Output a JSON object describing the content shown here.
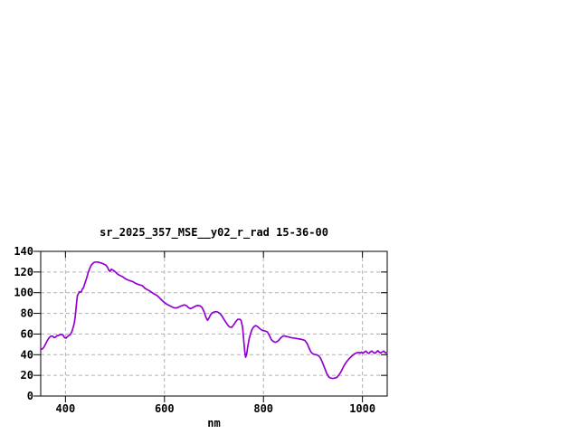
{
  "page": {
    "background": "#ffffff"
  },
  "chart_data": {
    "type": "line",
    "title": "sr_2025_357_MSE__y02_r_rad 15-36-00",
    "xlabel": "nm",
    "ylabel": "",
    "xlim": [
      350,
      1050
    ],
    "ylim": [
      0,
      140
    ],
    "xticks": [
      400,
      600,
      800,
      1000
    ],
    "yticks": [
      0,
      20,
      40,
      60,
      80,
      100,
      120,
      140
    ],
    "grid": true,
    "legend_position": "none",
    "line_color": "#9400d3",
    "grid_color": "#b0b0b0",
    "border_color": "#000000",
    "series": [
      {
        "name": "sr_2025_357_MSE__y02_r_rad",
        "x": [
          350,
          353,
          356,
          359,
          362,
          365,
          368,
          371,
          374,
          377,
          380,
          383,
          386,
          389,
          392,
          395,
          398,
          401,
          404,
          407,
          410,
          413,
          416,
          418,
          420,
          422,
          424,
          426,
          428,
          430,
          432,
          434,
          436,
          438,
          440,
          443,
          446,
          449,
          452,
          455,
          458,
          461,
          464,
          467,
          470,
          473,
          476,
          479,
          482,
          485,
          488,
          490,
          493,
          496,
          500,
          504,
          508,
          512,
          516,
          520,
          524,
          528,
          532,
          536,
          540,
          545,
          550,
          555,
          560,
          565,
          570,
          575,
          580,
          585,
          590,
          595,
          600,
          605,
          610,
          615,
          620,
          624,
          628,
          632,
          636,
          640,
          644,
          648,
          652,
          656,
          660,
          664,
          668,
          672,
          676,
          680,
          684,
          687,
          690,
          693,
          696,
          700,
          704,
          708,
          712,
          716,
          720,
          724,
          728,
          732,
          736,
          740,
          744,
          748,
          752,
          755,
          758,
          760,
          762,
          764,
          766,
          768,
          771,
          774,
          777,
          780,
          784,
          788,
          792,
          796,
          800,
          804,
          808,
          812,
          816,
          820,
          824,
          828,
          832,
          836,
          840,
          845,
          850,
          855,
          860,
          865,
          870,
          875,
          880,
          884,
          888,
          892,
          896,
          900,
          904,
          908,
          912,
          916,
          920,
          924,
          928,
          932,
          936,
          940,
          944,
          948,
          952,
          956,
          960,
          964,
          968,
          972,
          976,
          980,
          984,
          988,
          992,
          995,
          998,
          1001,
          1004,
          1007,
          1010,
          1013,
          1016,
          1019,
          1022,
          1025,
          1028,
          1031,
          1034,
          1037,
          1040,
          1043,
          1046,
          1049
        ],
        "y": [
          45,
          45.5,
          47,
          49.5,
          52.5,
          55,
          57,
          58,
          58,
          56.5,
          57,
          58.5,
          58.5,
          59.5,
          59.5,
          59,
          56.5,
          56,
          57.5,
          58.5,
          59.5,
          62.5,
          67,
          71,
          78,
          88,
          97,
          99,
          101,
          100.5,
          101,
          103.5,
          104.5,
          107,
          110,
          114.5,
          119.5,
          123.5,
          126.5,
          128.3,
          129.3,
          129.7,
          129.7,
          129.4,
          129,
          128.5,
          128,
          127.3,
          126.5,
          124.5,
          121.5,
          120.7,
          122.8,
          121.8,
          120.5,
          118.5,
          117.2,
          116.3,
          115.3,
          113.8,
          112.8,
          112,
          111.3,
          110.8,
          109.5,
          108.3,
          107.5,
          106.8,
          104.5,
          103,
          101.8,
          100,
          98.5,
          97.2,
          95,
          92.5,
          90.5,
          88.8,
          87.5,
          86.3,
          85.3,
          85.2,
          85.8,
          86.8,
          87.6,
          88.2,
          87.5,
          85.8,
          84.5,
          85.2,
          86.3,
          87.3,
          87.6,
          87.2,
          85.5,
          81.5,
          76,
          73.2,
          75.5,
          78.5,
          80.3,
          81.3,
          81.6,
          81.2,
          79.8,
          77.5,
          74.5,
          71.5,
          68.5,
          66.8,
          66.5,
          69,
          72,
          74.2,
          74.3,
          73,
          66,
          55,
          44,
          37.5,
          40,
          47,
          55,
          60.5,
          64.5,
          66.8,
          68.2,
          67.3,
          65.5,
          64,
          63.2,
          62.8,
          62,
          58.5,
          54.5,
          52.8,
          52,
          52.8,
          54.5,
          56.8,
          58.2,
          57.8,
          57.2,
          56.6,
          56.2,
          55.8,
          55.4,
          55,
          54.4,
          53.6,
          51,
          46.5,
          42.5,
          40.8,
          40.2,
          39.8,
          38.8,
          36,
          31.5,
          26.5,
          21.8,
          18.5,
          17.3,
          17,
          17.3,
          18,
          20,
          23,
          26.8,
          30.3,
          33.2,
          35.5,
          37.5,
          39.3,
          40.8,
          41.8,
          42.2,
          41.6,
          42.4,
          41.4,
          42.6,
          43.4,
          42,
          41.2,
          42.8,
          43.6,
          42.2,
          41.4,
          42.4,
          43.8,
          42.4,
          41.6,
          42.8,
          43.4,
          42,
          41.6
        ]
      }
    ]
  }
}
